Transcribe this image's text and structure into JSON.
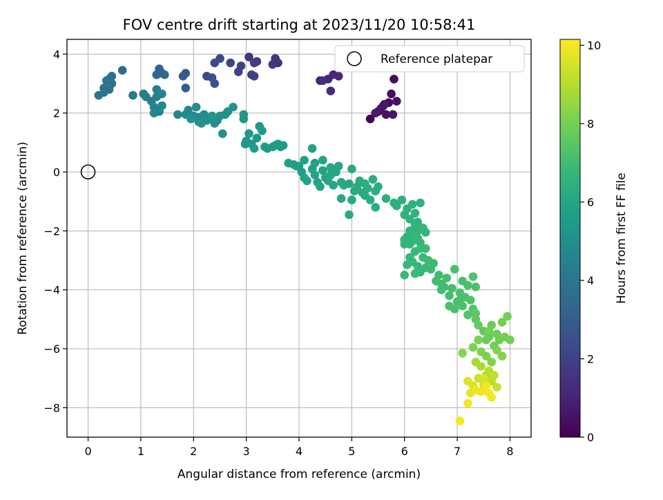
{
  "chart_data": {
    "type": "scatter",
    "title": "FOV centre drift starting at 2023/11/20 10:58:41",
    "xlabel": "Angular distance from reference (arcmin)",
    "ylabel": "Rotation from reference (arcmin)",
    "xlim": [
      -0.4,
      8.4
    ],
    "ylim": [
      -9.0,
      4.5
    ],
    "xticks": [
      0,
      1,
      2,
      3,
      4,
      5,
      6,
      7,
      8
    ],
    "yticks": [
      -8,
      -6,
      -4,
      -2,
      0,
      2,
      4
    ],
    "grid": true,
    "legend": {
      "position": "upper right",
      "entries": [
        "Reference platepar"
      ]
    },
    "reference_point": {
      "x": 0,
      "y": 0,
      "label": "Reference platepar"
    },
    "colorbar": {
      "label": "Hours from first FF file",
      "colormap": "viridis",
      "range": [
        0,
        10.15
      ],
      "ticks": [
        0,
        2,
        4,
        6,
        8,
        10
      ]
    },
    "series": [
      {
        "name": "FOV centre drift",
        "points": [
          [
            5.35,
            1.8,
            0.1
          ],
          [
            5.5,
            2.05,
            0.2
          ],
          [
            5.6,
            2.25,
            0.3
          ],
          [
            5.7,
            2.35,
            0.3
          ],
          [
            5.75,
            2.65,
            0.4
          ],
          [
            5.8,
            3.15,
            0.4
          ],
          [
            5.65,
            1.95,
            0.5
          ],
          [
            5.85,
            2.4,
            0.5
          ],
          [
            5.55,
            2.15,
            0.6
          ],
          [
            5.78,
            1.95,
            0.6
          ],
          [
            5.62,
            2.3,
            0.7
          ],
          [
            5.45,
            2.0,
            0.7
          ],
          [
            4.4,
            3.1,
            1.0
          ],
          [
            4.55,
            3.15,
            1.0
          ],
          [
            4.65,
            3.3,
            1.1
          ],
          [
            4.75,
            3.25,
            1.2
          ],
          [
            4.6,
            2.75,
            1.3
          ],
          [
            4.45,
            3.1,
            1.3
          ],
          [
            3.55,
            3.85,
            1.5
          ],
          [
            3.6,
            3.7,
            1.5
          ],
          [
            3.5,
            3.65,
            1.6
          ],
          [
            3.2,
            3.75,
            1.7
          ],
          [
            3.05,
            3.9,
            1.7
          ],
          [
            3.15,
            3.7,
            1.8
          ],
          [
            3.1,
            3.3,
            1.9
          ],
          [
            3.15,
            3.25,
            1.9
          ],
          [
            2.85,
            3.4,
            2.0
          ],
          [
            2.9,
            3.6,
            2.0
          ],
          [
            2.7,
            3.7,
            2.1
          ],
          [
            2.5,
            3.85,
            2.2
          ],
          [
            2.4,
            3.7,
            2.3
          ],
          [
            2.25,
            3.25,
            2.3
          ],
          [
            2.35,
            3.2,
            2.4
          ],
          [
            2.4,
            3.0,
            2.5
          ],
          [
            1.85,
            3.35,
            2.8
          ],
          [
            1.8,
            3.25,
            2.9
          ],
          [
            1.85,
            2.85,
            3.0
          ],
          [
            1.4,
            3.35,
            3.1
          ],
          [
            1.35,
            3.5,
            3.2
          ],
          [
            1.45,
            3.3,
            3.3
          ],
          [
            1.3,
            3.3,
            3.4
          ],
          [
            0.65,
            3.45,
            3.6
          ],
          [
            0.45,
            3.25,
            3.7
          ],
          [
            0.4,
            3.15,
            3.7
          ],
          [
            0.35,
            3.1,
            3.8
          ],
          [
            0.3,
            2.85,
            3.8
          ],
          [
            0.45,
            3.0,
            3.9
          ],
          [
            0.4,
            2.8,
            3.9
          ],
          [
            0.2,
            2.6,
            4.0
          ],
          [
            0.3,
            2.7,
            4.0
          ],
          [
            0.85,
            2.6,
            4.2
          ],
          [
            1.05,
            2.65,
            4.2
          ],
          [
            1.1,
            2.55,
            4.3
          ],
          [
            1.2,
            2.4,
            4.3
          ],
          [
            1.3,
            2.8,
            4.4
          ],
          [
            1.3,
            2.55,
            4.4
          ],
          [
            1.4,
            2.65,
            4.5
          ],
          [
            1.25,
            2.2,
            4.5
          ],
          [
            1.35,
            2.05,
            4.6
          ],
          [
            1.25,
            2.0,
            4.6
          ],
          [
            1.4,
            2.25,
            4.7
          ],
          [
            1.7,
            1.95,
            4.7
          ],
          [
            1.85,
            1.95,
            4.8
          ],
          [
            1.9,
            2.1,
            4.8
          ],
          [
            2.0,
            1.9,
            4.8
          ],
          [
            2.1,
            1.85,
            4.9
          ],
          [
            2.05,
            2.2,
            4.9
          ],
          [
            2.2,
            1.95,
            4.9
          ],
          [
            2.25,
            1.75,
            5.0
          ],
          [
            2.3,
            1.85,
            5.0
          ],
          [
            2.4,
            1.65,
            5.0
          ],
          [
            2.1,
            1.7,
            5.0
          ],
          [
            2.5,
            1.9,
            5.1
          ],
          [
            2.45,
            1.75,
            5.1
          ],
          [
            2.6,
            1.95,
            5.1
          ],
          [
            2.55,
            1.3,
            5.1
          ],
          [
            2.65,
            2.05,
            5.2
          ],
          [
            2.75,
            2.2,
            5.2
          ],
          [
            1.95,
            1.8,
            5.2
          ],
          [
            2.15,
            1.65,
            5.2
          ],
          [
            2.35,
            1.9,
            5.3
          ],
          [
            2.95,
            1.95,
            5.3
          ],
          [
            2.95,
            1.8,
            5.3
          ],
          [
            3.0,
            1.05,
            5.3
          ],
          [
            3.05,
            1.3,
            5.4
          ],
          [
            3.1,
            0.95,
            5.4
          ],
          [
            3.2,
            1.15,
            5.4
          ],
          [
            3.25,
            1.55,
            5.4
          ],
          [
            3.3,
            1.4,
            5.5
          ],
          [
            3.35,
            0.85,
            5.5
          ],
          [
            3.4,
            0.8,
            5.5
          ],
          [
            3.5,
            0.85,
            5.5
          ],
          [
            3.55,
            0.9,
            5.6
          ],
          [
            3.6,
            0.95,
            5.6
          ],
          [
            3.65,
            0.85,
            5.6
          ],
          [
            3.7,
            0.9,
            5.6
          ],
          [
            3.15,
            0.8,
            5.6
          ],
          [
            2.98,
            0.95,
            5.4
          ],
          [
            3.8,
            0.3,
            5.7
          ],
          [
            3.9,
            0.25,
            5.7
          ],
          [
            4.0,
            0.2,
            5.7
          ],
          [
            4.05,
            0.0,
            5.7
          ],
          [
            4.1,
            0.4,
            5.8
          ],
          [
            4.1,
            -0.2,
            5.8
          ],
          [
            4.15,
            -0.3,
            5.8
          ],
          [
            4.25,
            0.1,
            5.8
          ],
          [
            4.3,
            0.3,
            5.8
          ],
          [
            4.3,
            -0.1,
            5.9
          ],
          [
            4.4,
            -0.5,
            5.9
          ],
          [
            4.35,
            -0.35,
            5.9
          ],
          [
            4.45,
            0.4,
            5.9
          ],
          [
            4.45,
            0.05,
            5.9
          ],
          [
            4.5,
            -0.2,
            5.9
          ],
          [
            4.55,
            -0.3,
            6.0
          ],
          [
            4.6,
            -0.1,
            6.0
          ],
          [
            4.6,
            0.15,
            6.0
          ],
          [
            4.65,
            -0.45,
            6.0
          ],
          [
            4.7,
            0.0,
            6.0
          ],
          [
            4.75,
            0.2,
            6.0
          ],
          [
            4.25,
            0.8,
            5.8
          ],
          [
            3.95,
            0.2,
            5.7
          ],
          [
            4.8,
            -0.35,
            6.1
          ],
          [
            4.85,
            -0.45,
            6.1
          ],
          [
            4.95,
            -0.4,
            6.1
          ],
          [
            5.0,
            -0.95,
            6.1
          ],
          [
            5.0,
            0.1,
            6.2
          ],
          [
            5.05,
            -0.65,
            6.2
          ],
          [
            5.1,
            -0.5,
            6.2
          ],
          [
            5.15,
            -0.3,
            6.2
          ],
          [
            5.2,
            -0.7,
            6.2
          ],
          [
            5.25,
            -0.4,
            6.3
          ],
          [
            5.3,
            -0.55,
            6.3
          ],
          [
            5.35,
            -0.95,
            6.3
          ],
          [
            5.4,
            -0.25,
            6.3
          ],
          [
            5.45,
            -0.65,
            6.3
          ],
          [
            5.45,
            -1.2,
            6.3
          ],
          [
            5.5,
            -0.5,
            6.3
          ],
          [
            4.95,
            -1.45,
            6.2
          ],
          [
            4.8,
            -0.9,
            6.1
          ],
          [
            5.25,
            -0.8,
            6.2
          ],
          [
            5.65,
            -0.9,
            6.4
          ],
          [
            5.8,
            -1.05,
            6.4
          ],
          [
            5.85,
            -1.15,
            6.4
          ],
          [
            5.95,
            -0.95,
            6.4
          ],
          [
            6.0,
            -1.45,
            6.5
          ],
          [
            6.05,
            -1.25,
            6.5
          ],
          [
            6.1,
            -1.6,
            6.5
          ],
          [
            6.15,
            -1.1,
            6.5
          ],
          [
            6.2,
            -1.4,
            6.5
          ],
          [
            6.25,
            -1.7,
            6.5
          ],
          [
            6.3,
            -1.05,
            6.5
          ],
          [
            6.25,
            -2.0,
            6.6
          ],
          [
            6.2,
            -1.8,
            6.6
          ],
          [
            6.1,
            -2.0,
            6.6
          ],
          [
            6.05,
            -2.2,
            6.6
          ],
          [
            6.0,
            -2.3,
            6.6
          ],
          [
            6.1,
            -2.45,
            6.6
          ],
          [
            6.15,
            -2.35,
            6.7
          ],
          [
            6.2,
            -2.15,
            6.7
          ],
          [
            6.25,
            -2.25,
            6.7
          ],
          [
            6.3,
            -2.4,
            6.7
          ],
          [
            6.35,
            -1.9,
            6.7
          ],
          [
            6.0,
            -2.45,
            6.7
          ],
          [
            6.4,
            -2.05,
            6.7
          ],
          [
            6.1,
            -2.9,
            6.8
          ],
          [
            6.15,
            -3.05,
            6.8
          ],
          [
            6.2,
            -2.7,
            6.8
          ],
          [
            6.25,
            -3.2,
            6.8
          ],
          [
            6.3,
            -3.4,
            6.8
          ],
          [
            6.35,
            -2.9,
            6.9
          ],
          [
            6.4,
            -3.25,
            6.9
          ],
          [
            6.45,
            -3.0,
            6.9
          ],
          [
            6.5,
            -3.3,
            6.9
          ],
          [
            6.55,
            -3.1,
            6.9
          ],
          [
            6.4,
            -2.6,
            6.9
          ],
          [
            6.3,
            -2.6,
            6.9
          ],
          [
            6.05,
            -3.15,
            6.8
          ],
          [
            6.0,
            -3.5,
            6.8
          ],
          [
            6.2,
            -3.45,
            6.9
          ],
          [
            6.6,
            -3.7,
            7.0
          ],
          [
            6.65,
            -3.5,
            7.0
          ],
          [
            6.7,
            -4.0,
            7.0
          ],
          [
            6.75,
            -3.9,
            7.0
          ],
          [
            6.8,
            -3.6,
            7.1
          ],
          [
            6.85,
            -4.2,
            7.1
          ],
          [
            6.9,
            -3.95,
            7.1
          ],
          [
            6.95,
            -3.3,
            7.1
          ],
          [
            7.0,
            -4.4,
            7.1
          ],
          [
            7.05,
            -4.1,
            7.2
          ],
          [
            7.1,
            -4.55,
            7.2
          ],
          [
            7.15,
            -4.25,
            7.2
          ],
          [
            7.2,
            -3.85,
            7.2
          ],
          [
            7.25,
            -4.35,
            7.3
          ],
          [
            7.3,
            -4.65,
            7.3
          ],
          [
            7.3,
            -3.55,
            7.3
          ],
          [
            7.35,
            -3.9,
            7.3
          ],
          [
            7.2,
            -4.85,
            7.3
          ],
          [
            7.1,
            -3.7,
            7.2
          ],
          [
            6.85,
            -4.55,
            7.2
          ],
          [
            6.95,
            -4.65,
            7.2
          ],
          [
            7.05,
            -4.35,
            7.2
          ],
          [
            6.7,
            -3.8,
            7.0
          ],
          [
            7.35,
            -5.0,
            7.6
          ],
          [
            7.35,
            -4.8,
            7.6
          ],
          [
            7.4,
            -5.2,
            7.7
          ],
          [
            7.5,
            -5.4,
            7.7
          ],
          [
            7.55,
            -5.7,
            7.8
          ],
          [
            7.6,
            -5.6,
            7.8
          ],
          [
            7.65,
            -5.2,
            7.8
          ],
          [
            7.7,
            -5.9,
            7.9
          ],
          [
            7.75,
            -5.5,
            7.9
          ],
          [
            7.8,
            -5.7,
            7.9
          ],
          [
            7.85,
            -5.1,
            8.0
          ],
          [
            7.9,
            -5.6,
            8.0
          ],
          [
            7.95,
            -4.9,
            8.0
          ],
          [
            8.0,
            -5.7,
            8.0
          ],
          [
            7.3,
            -5.95,
            8.1
          ],
          [
            7.45,
            -6.1,
            8.1
          ],
          [
            7.55,
            -6.25,
            8.1
          ],
          [
            7.65,
            -6.45,
            8.2
          ],
          [
            7.75,
            -6.05,
            8.2
          ],
          [
            7.85,
            -6.25,
            8.2
          ],
          [
            7.1,
            -6.15,
            8.3
          ],
          [
            7.4,
            -5.7,
            8.1
          ],
          [
            7.6,
            -5.4,
            8.0
          ],
          [
            7.35,
            -6.45,
            8.8
          ],
          [
            7.45,
            -6.6,
            8.8
          ],
          [
            7.55,
            -6.9,
            8.9
          ],
          [
            7.6,
            -6.75,
            9.0
          ],
          [
            7.65,
            -7.1,
            9.1
          ],
          [
            7.7,
            -6.9,
            9.2
          ],
          [
            7.75,
            -7.3,
            9.3
          ],
          [
            7.4,
            -7.0,
            9.4
          ],
          [
            7.5,
            -7.2,
            9.5
          ],
          [
            7.3,
            -7.25,
            9.6
          ],
          [
            7.2,
            -7.1,
            9.7
          ],
          [
            7.25,
            -7.5,
            9.8
          ],
          [
            7.35,
            -7.4,
            9.9
          ],
          [
            7.45,
            -7.45,
            9.9
          ],
          [
            7.55,
            -7.25,
            10.0
          ],
          [
            7.65,
            -7.65,
            10.0
          ],
          [
            7.2,
            -7.85,
            10.0
          ],
          [
            7.05,
            -8.45,
            10.1
          ],
          [
            7.5,
            -7.0,
            9.6
          ],
          [
            7.6,
            -7.5,
            10.0
          ]
        ]
      }
    ]
  }
}
